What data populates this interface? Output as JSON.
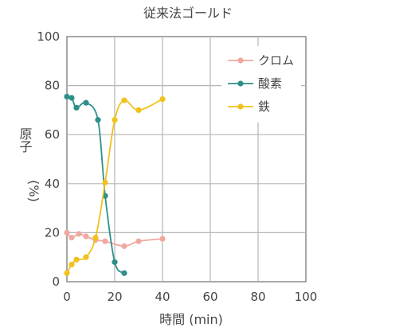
{
  "chart_data": {
    "type": "line",
    "title": "従来法ゴールド",
    "xlabel": "時間 (min)",
    "ylabel_main": "原子",
    "ylabel_unit": "(%)",
    "xlim": [
      0,
      100
    ],
    "ylim": [
      0,
      100
    ],
    "xticks": [
      "0",
      "20",
      "40",
      "60",
      "80",
      "100"
    ],
    "yticks": [
      "0",
      "20",
      "40",
      "60",
      "80",
      "100"
    ],
    "grid": true,
    "legend_position": "top-right",
    "series": [
      {
        "name": "クロム",
        "color": "#f0a8a0",
        "points": [
          [
            0,
            20
          ],
          [
            2,
            18
          ],
          [
            5,
            19.5
          ],
          [
            8,
            18.5
          ],
          [
            12,
            17
          ],
          [
            16,
            16.5
          ],
          [
            24,
            14.5
          ],
          [
            30,
            16.5
          ],
          [
            40,
            17.5
          ]
        ]
      },
      {
        "name": "酸素",
        "color": "#2e8f8a",
        "points": [
          [
            0,
            75.5
          ],
          [
            2,
            75
          ],
          [
            4,
            71
          ],
          [
            8,
            73
          ],
          [
            13,
            66
          ],
          [
            16,
            35
          ],
          [
            20,
            8
          ],
          [
            24,
            3.5
          ]
        ]
      },
      {
        "name": "鉄",
        "color": "#f2c11c",
        "points": [
          [
            0,
            3.5
          ],
          [
            2,
            7
          ],
          [
            4,
            9
          ],
          [
            8,
            10
          ],
          [
            12,
            18
          ],
          [
            16,
            40.5
          ],
          [
            20,
            66
          ],
          [
            24,
            74
          ],
          [
            30,
            70
          ],
          [
            40,
            74.5
          ]
        ]
      }
    ]
  }
}
